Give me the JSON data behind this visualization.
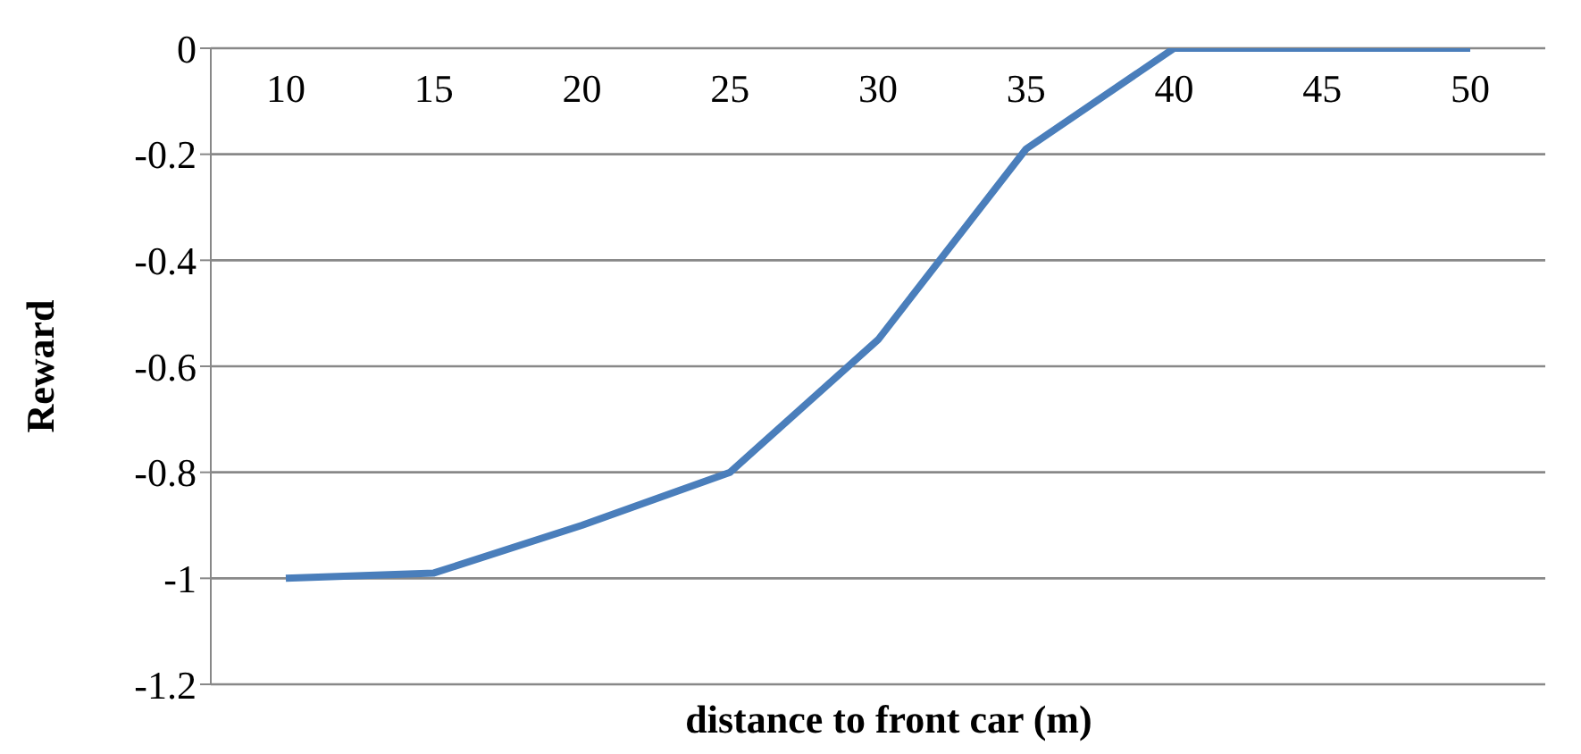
{
  "chart_data": {
    "type": "line",
    "xlabel": "distance to front car (m)",
    "ylabel": "Reward",
    "categories": [
      "10",
      "15",
      "20",
      "25",
      "30",
      "35",
      "40",
      "45",
      "50"
    ],
    "series": [
      {
        "color": "#4a7ebb",
        "values": [
          -1,
          -0.99,
          -0.9,
          -0.8,
          -0.55,
          -0.19,
          0,
          0,
          0
        ]
      }
    ],
    "ylim": [
      -1.2,
      0
    ],
    "yticks": [
      -1.2,
      -1,
      -0.8,
      -0.6,
      -0.4,
      -0.2,
      0
    ],
    "grid": "y",
    "legend": false,
    "marker": "none",
    "line_style": "solid"
  }
}
